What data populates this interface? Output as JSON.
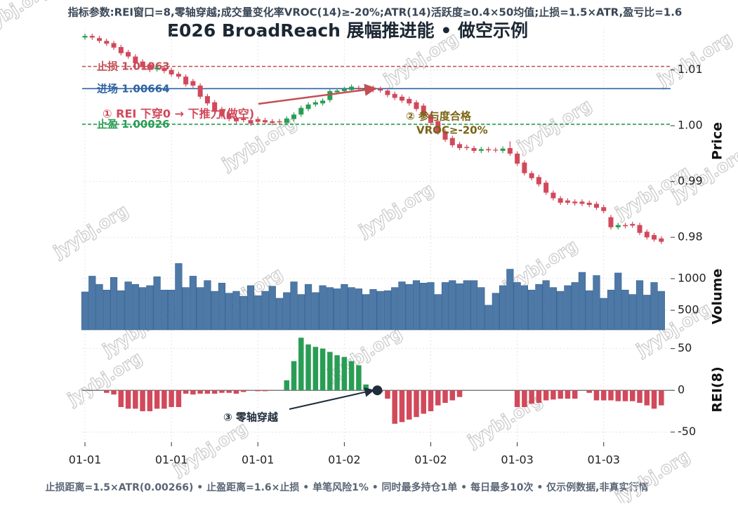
{
  "chart_data": [
    {
      "type": "candlestick",
      "title": "E026 BroadReach 展幅推进能 • 做空示例",
      "subtitle": "指标参数:REI窗口=8,零轴穿越;成交量变化率VROC(14)≥-20%;ATR(14)活跃度≥0.4×50均值;止损=1.5×ATR,盈亏比=1.6",
      "footer": "止损距离=1.5×ATR(0.00266) • 止盈距离=1.6×止损 • 单笔风险1% • 同时最多持仓1单 • 每日最多10次 • 仅示例数据,非真实行情",
      "watermark": "jyybj.org",
      "categories": [
        "01-01",
        null,
        null,
        null,
        null,
        null,
        null,
        null,
        null,
        null,
        null,
        null,
        "01-01",
        null,
        null,
        null,
        null,
        null,
        null,
        null,
        null,
        null,
        null,
        null,
        "01-01",
        null,
        null,
        null,
        null,
        null,
        null,
        null,
        null,
        null,
        null,
        null,
        "01-02",
        null,
        null,
        null,
        null,
        null,
        null,
        null,
        null,
        null,
        null,
        null,
        "01-02",
        null,
        null,
        null,
        null,
        null,
        null,
        null,
        null,
        null,
        null,
        null,
        "01-03",
        null,
        null,
        null,
        null,
        null,
        null,
        null,
        null,
        null,
        null,
        null,
        "01-03",
        null,
        null,
        null,
        null,
        null,
        null,
        null,
        null
      ],
      "open": [
        1.0158,
        1.0161,
        1.0157,
        1.0152,
        1.0148,
        1.0141,
        1.0132,
        1.0124,
        1.0115,
        1.011,
        1.0101,
        1.0104,
        1.01,
        1.0093,
        1.0088,
        1.008,
        1.0072,
        1.0053,
        1.0042,
        1.003,
        1.0022,
        1.0014,
        1.0013,
        1.001,
        1.0012,
        1.001,
        1.0008,
        1.0008,
        1.0005,
        1.0012,
        1.002,
        1.003,
        1.0038,
        1.004,
        1.0046,
        1.006,
        1.0062,
        1.0064,
        1.0068,
        1.0066,
        1.0068,
        1.0066,
        1.0063,
        1.0057,
        1.0052,
        1.0048,
        1.0042,
        1.0036,
        1.002,
        1.0008,
        0.999,
        0.9978,
        0.9967,
        0.9962,
        0.996,
        0.9955,
        0.9958,
        0.9957,
        0.9955,
        0.996,
        0.995,
        0.9934,
        0.9915,
        0.9908,
        0.9898,
        0.988,
        0.987,
        0.9866,
        0.9864,
        0.9864,
        0.9862,
        0.986,
        0.9854,
        0.9836,
        0.9818,
        0.9822,
        0.9824,
        0.9822,
        0.981,
        0.9804,
        0.9798
      ],
      "high": [
        1.0165,
        1.0165,
        1.0161,
        1.0156,
        1.0152,
        1.0145,
        1.0136,
        1.0128,
        1.0119,
        1.0114,
        1.0108,
        1.0108,
        1.0104,
        1.0097,
        1.0092,
        1.0084,
        1.0076,
        1.0057,
        1.0046,
        1.0034,
        1.0026,
        1.0018,
        1.0017,
        1.0014,
        1.0016,
        1.0014,
        1.0012,
        1.0012,
        1.0017,
        1.0024,
        1.0036,
        1.0042,
        1.0046,
        1.0049,
        1.0066,
        1.0067,
        1.007,
        1.0074,
        1.0072,
        1.0072,
        1.0072,
        1.007,
        1.0067,
        1.0061,
        1.0056,
        1.0052,
        1.0046,
        1.004,
        1.0024,
        1.0012,
        0.9994,
        0.9982,
        0.9971,
        0.9966,
        0.9964,
        0.9962,
        0.9962,
        0.9961,
        0.9963,
        0.9972,
        0.9954,
        0.9938,
        0.9919,
        0.9912,
        0.9902,
        0.9884,
        0.9874,
        0.987,
        0.9868,
        0.9868,
        0.9866,
        0.9864,
        0.9858,
        0.984,
        0.9826,
        0.9826,
        0.9828,
        0.9826,
        0.9814,
        0.9808,
        0.9802
      ],
      "low": [
        1.0154,
        1.0154,
        1.0148,
        1.0143,
        1.0136,
        1.0126,
        1.012,
        1.0108,
        1.0101,
        1.0096,
        1.0097,
        1.0094,
        1.0088,
        1.0084,
        1.007,
        1.0068,
        1.0048,
        1.0036,
        1.0021,
        1.0013,
        1.0008,
        1.0004,
        1.0006,
        1.0,
        1.0003,
        1.0002,
        1.0001,
        1.0002,
        1.0001,
        1.0008,
        1.0016,
        1.0026,
        1.0034,
        1.0036,
        1.0042,
        1.0056,
        1.0058,
        1.006,
        1.0062,
        1.0062,
        1.006,
        1.0059,
        1.0051,
        1.0046,
        1.0041,
        1.0036,
        1.0026,
        1.0014,
        1.0001,
        0.9984,
        0.9971,
        0.9961,
        0.9956,
        0.9956,
        0.9951,
        0.9951,
        0.9952,
        0.9952,
        0.9951,
        0.9946,
        0.9928,
        0.9911,
        0.9902,
        0.9891,
        0.9876,
        0.9866,
        0.9858,
        0.9858,
        0.9857,
        0.9856,
        0.9854,
        0.9849,
        0.9843,
        0.9814,
        0.9814,
        0.9816,
        0.9817,
        0.9804,
        0.9796,
        0.9792,
        0.9788
      ],
      "close": [
        1.0161,
        1.0158,
        1.0152,
        1.0147,
        1.014,
        1.013,
        1.0124,
        1.0112,
        1.0105,
        1.01,
        1.0104,
        1.0098,
        1.0092,
        1.0088,
        1.0074,
        1.0072,
        1.0052,
        1.004,
        1.0025,
        1.0017,
        1.0012,
        1.0008,
        1.001,
        1.0004,
        1.0007,
        1.0006,
        1.0005,
        1.0006,
        1.0013,
        1.002,
        1.0032,
        1.0038,
        1.0042,
        1.0045,
        1.0062,
        1.0063,
        1.0066,
        1.007,
        1.0066,
        1.0068,
        1.0064,
        1.0063,
        1.0055,
        1.005,
        1.0045,
        1.004,
        1.003,
        1.0018,
        1.0005,
        0.9988,
        0.9975,
        0.9965,
        0.996,
        0.996,
        0.9955,
        0.9958,
        0.9956,
        0.9956,
        0.9959,
        0.995,
        0.9932,
        0.9915,
        0.9906,
        0.9895,
        0.988,
        0.987,
        0.9862,
        0.9862,
        0.9861,
        0.986,
        0.9858,
        0.9853,
        0.9847,
        0.9818,
        0.9822,
        0.982,
        0.9821,
        0.9808,
        0.98,
        0.9796,
        0.9792
      ],
      "colors": {
        "up": "#2a9d55",
        "down": "#d1495b"
      },
      "ylim": [
        0.977,
        1.0175
      ],
      "yticks": [
        0.98,
        0.99,
        {
          "value": 1,
          "label": "1.00"
        },
        1.01
      ],
      "ylabel": "Price",
      "grid": true,
      "levels": [
        {
          "label": "止损",
          "value": 1.01063,
          "color": "#c44e52",
          "dash": true
        },
        {
          "label": "进场",
          "value": 1.00664,
          "color": "#2f64a3",
          "dash": false
        },
        {
          "label": "止盈",
          "value": 1.00026,
          "color": "#2a9d55",
          "dash": true
        }
      ],
      "annotations": [
        "① REI 下穿0 → 下推力(做空)",
        "② 参与度合格",
        "VROC≥-20%"
      ]
    },
    {
      "type": "bar",
      "ylabel": "Volume",
      "values": [
        790,
        1040,
        910,
        820,
        1020,
        810,
        950,
        910,
        860,
        890,
        1030,
        820,
        820,
        1240,
        860,
        1040,
        860,
        970,
        800,
        930,
        770,
        800,
        720,
        890,
        730,
        800,
        880,
        690,
        780,
        950,
        750,
        910,
        780,
        890,
        860,
        840,
        910,
        860,
        840,
        750,
        830,
        800,
        810,
        860,
        950,
        910,
        970,
        930,
        940,
        750,
        940,
        970,
        920,
        970,
        970,
        860,
        580,
        770,
        890,
        1150,
        940,
        890,
        820,
        910,
        970,
        860,
        800,
        890,
        940,
        1100,
        810,
        1050,
        690,
        820,
        1090,
        820,
        750,
        970,
        740,
        940,
        800
      ],
      "color": "#4e79a7",
      "ylim": [
        190,
        1245
      ],
      "yticks": [
        500,
        1000
      ]
    },
    {
      "type": "bar",
      "ylabel": "REI(8)",
      "values": [
        0,
        0,
        0,
        -3,
        -5,
        -20,
        -22,
        -22,
        -25,
        -25,
        -22,
        -22,
        -20,
        -20,
        -4,
        -5,
        -4,
        -4,
        -4,
        -3,
        -3,
        -4,
        -2,
        0,
        -1,
        -1,
        0,
        0,
        12,
        35,
        63,
        55,
        52,
        50,
        46,
        42,
        40,
        35,
        30,
        7,
        0,
        -2,
        -10,
        -40,
        -38,
        -35,
        -32,
        -28,
        -25,
        -18,
        -15,
        -12,
        -8,
        0,
        0,
        0,
        0,
        0,
        0,
        0,
        -20,
        -20,
        -16,
        -15,
        -12,
        -11,
        -10,
        -10,
        -10,
        0,
        -3,
        -12,
        -12,
        -12,
        -13,
        -13,
        -13,
        -15,
        -18,
        -22,
        -18
      ],
      "colors": {
        "up": "#2a9d55",
        "down": "#d1495b"
      },
      "ylim": [
        -62,
        64
      ],
      "yticks": [
        -50,
        0,
        50
      ],
      "annotation": "③ 零轴穿越"
    }
  ]
}
